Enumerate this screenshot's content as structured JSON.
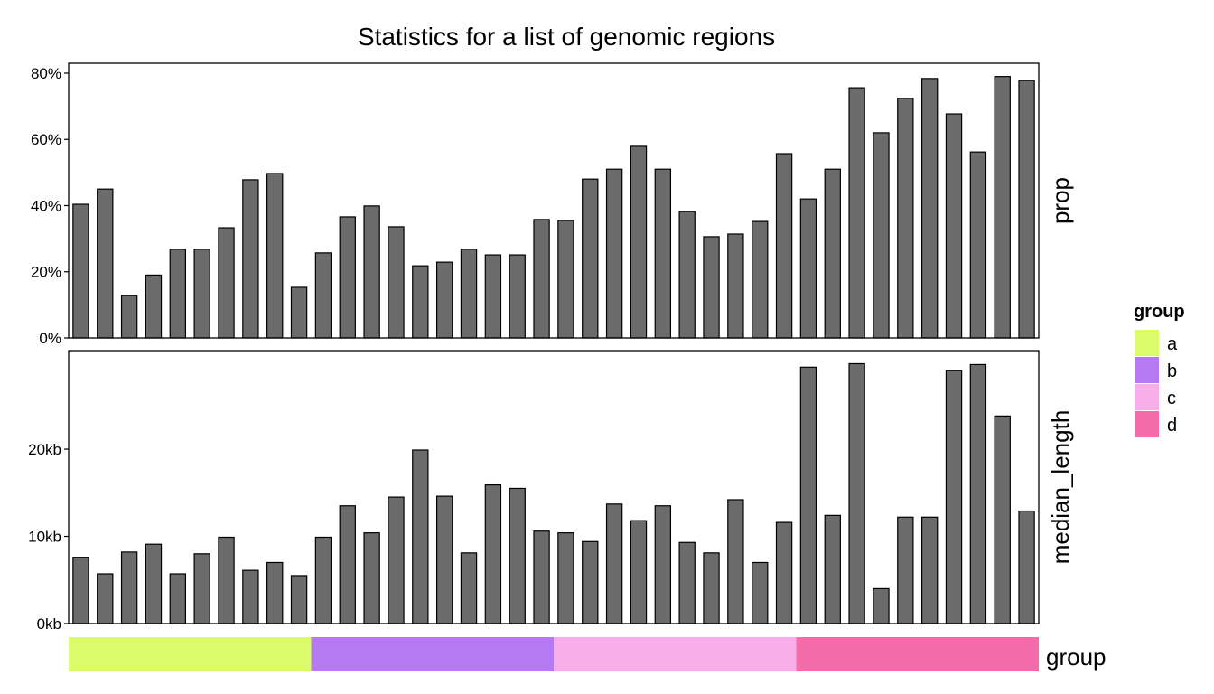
{
  "chart_data": [
    {
      "type": "bar",
      "panel": "prop",
      "title": "Statistics for a list of genomic regions",
      "ylabel": "prop",
      "ylim": [
        0,
        83
      ],
      "yticks": [
        0,
        20,
        40,
        60,
        80
      ],
      "ytick_labels": [
        "0%",
        "20%",
        "40%",
        "60%",
        "80%"
      ],
      "values": [
        40.4,
        45,
        12.8,
        19,
        26.8,
        26.8,
        33.3,
        47.8,
        49.7,
        15.3,
        25.7,
        36.6,
        39.9,
        33.6,
        21.8,
        22.9,
        26.8,
        25.1,
        25.1,
        35.8,
        35.5,
        48,
        51,
        57.9,
        51,
        38.2,
        30.6,
        31.4,
        35.2,
        55.7,
        42,
        51,
        75.6,
        62,
        72.4,
        78.4,
        67.7,
        56.2,
        79,
        77.8
      ]
    },
    {
      "type": "bar",
      "panel": "median_length",
      "ylabel": "median_length",
      "ylim": [
        0,
        31.3
      ],
      "yticks": [
        0,
        10,
        20
      ],
      "ytick_labels": [
        "0kb",
        "10kb",
        "20kb"
      ],
      "values": [
        7.6,
        5.7,
        8.2,
        9.1,
        5.7,
        8.0,
        9.9,
        6.1,
        7.0,
        5.5,
        9.9,
        13.5,
        10.4,
        14.5,
        19.9,
        14.6,
        8.1,
        15.9,
        15.5,
        10.6,
        10.4,
        9.4,
        13.7,
        11.8,
        13.5,
        9.3,
        8.1,
        14.2,
        7.0,
        11.6,
        29.4,
        12.4,
        29.8,
        4.0,
        12.2,
        12.2,
        29.0,
        29.7,
        23.8,
        12.9
      ]
    }
  ],
  "group_track": {
    "label": "group",
    "groups": [
      "a",
      "b",
      "c",
      "d"
    ],
    "counts": [
      10,
      10,
      10,
      10
    ]
  },
  "legend": {
    "title": "group",
    "placement": "right",
    "items": [
      {
        "label": "a",
        "color": "#DBFB6A"
      },
      {
        "label": "b",
        "color": "#B579F2"
      },
      {
        "label": "c",
        "color": "#F8AEE8"
      },
      {
        "label": "d",
        "color": "#F46BAA"
      }
    ]
  },
  "colors": {
    "bar_fill": "#6B6B6B",
    "bar_stroke": "#000000"
  }
}
